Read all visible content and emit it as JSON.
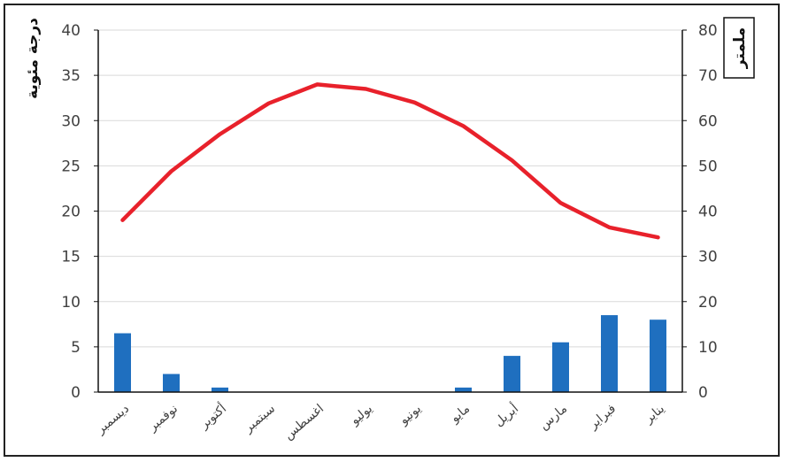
{
  "chart_data": {
    "type": "bar+line",
    "categories": [
      "يناير",
      "فبراير",
      "مارس",
      "أبريل",
      "مايو",
      "يونيو",
      "يوليو",
      "اغسطس",
      "سبتمبر",
      "أكتوبر",
      "نوفمبر",
      "ديسمبر"
    ],
    "x_direction": "right-to-left",
    "series": [
      {
        "type": "line",
        "axis": "left",
        "color": "#e8212b",
        "values": [
          17.1,
          18.2,
          20.9,
          25.6,
          29.4,
          32.0,
          33.5,
          34.0,
          31.9,
          28.5,
          24.4,
          19.0
        ]
      },
      {
        "type": "bar",
        "axis": "right",
        "color": "#1f6fbf",
        "values": [
          16.0,
          17.0,
          11.0,
          8.0,
          1.0,
          0,
          0,
          0,
          0,
          1.0,
          4.0,
          13.0
        ]
      }
    ],
    "y_left": {
      "label": "درجة مئوية",
      "min": 0,
      "max": 40,
      "step": 5
    },
    "y_right": {
      "label": "ملمتر",
      "min": 0,
      "max": 80,
      "step": 10
    },
    "grid": true
  }
}
